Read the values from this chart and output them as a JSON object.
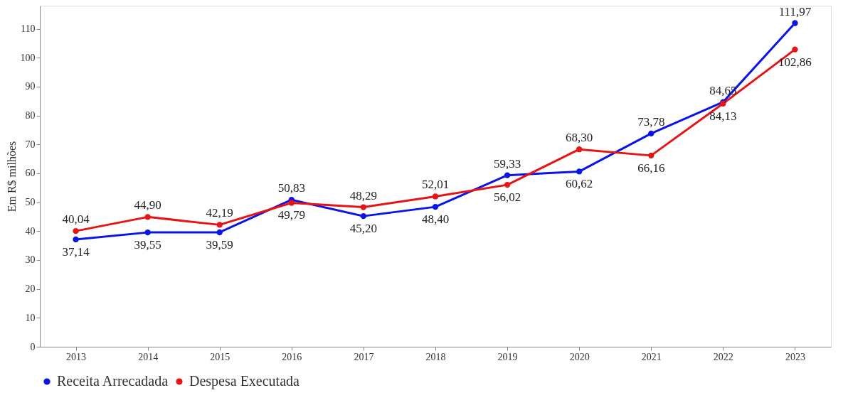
{
  "chart_data": {
    "type": "line",
    "ylabel": "Em R$ milhões",
    "categories": [
      "2013",
      "2014",
      "2015",
      "2016",
      "2017",
      "2018",
      "2019",
      "2020",
      "2021",
      "2022",
      "2023"
    ],
    "series": [
      {
        "name": "Receita Arrecadada",
        "color": "#0a14e6",
        "values": [
          37.14,
          39.55,
          39.59,
          50.83,
          45.2,
          48.4,
          59.33,
          60.62,
          73.78,
          84.65,
          111.97
        ],
        "value_labels": [
          "37,14",
          "39,55",
          "39,59",
          "50,83",
          "45,20",
          "48,40",
          "59,33",
          "60,62",
          "73,78",
          "84,65",
          "111,97"
        ]
      },
      {
        "name": "Despesa Executada",
        "color": "#e61414",
        "values": [
          40.04,
          44.9,
          42.19,
          49.79,
          48.29,
          52.01,
          56.02,
          68.3,
          66.16,
          84.13,
          102.86
        ],
        "value_labels": [
          "40,04",
          "44,90",
          "42,19",
          "49,79",
          "48,29",
          "52,01",
          "56,02",
          "68,30",
          "66,16",
          "84,13",
          "102,86"
        ]
      }
    ],
    "ylim": [
      0,
      118
    ],
    "yticks": [
      0,
      10,
      20,
      30,
      40,
      50,
      60,
      70,
      80,
      90,
      100,
      110
    ],
    "grid": false,
    "legend": "bottom",
    "marker": "circle",
    "line_style": "solid"
  }
}
